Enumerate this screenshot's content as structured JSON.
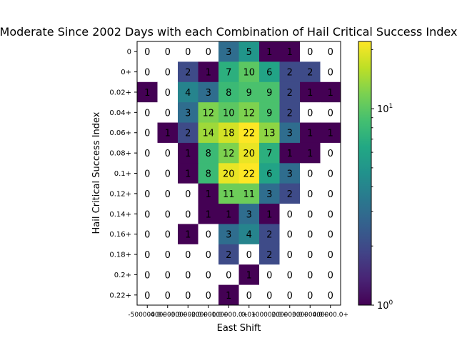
{
  "chart_data": {
    "type": "heatmap",
    "title": "Moderate Since 2002 Days with each Combination of Hail Critical Success Index",
    "xlabel": "East Shift",
    "ylabel": "Hail Critical Success Index",
    "x_ticks": [
      "-500000.0+",
      "-400000.0+",
      "-300000.0+",
      "-200000.0+",
      "-100000.0+",
      "0.0+",
      "100000.0+",
      "200000.0+",
      "300000.0+",
      "400000.0+"
    ],
    "y_ticks": [
      "0",
      "0+",
      "0.02+",
      "0.04+",
      "0.06+",
      "0.08+",
      "0.1+",
      "0.12+",
      "0.14+",
      "0.16+",
      "0.18+",
      "0.2+",
      "0.22+"
    ],
    "values": [
      [
        0,
        0,
        0,
        0,
        3,
        5,
        1,
        1,
        0,
        0
      ],
      [
        0,
        0,
        2,
        1,
        7,
        10,
        6,
        2,
        2,
        0
      ],
      [
        1,
        0,
        4,
        3,
        8,
        9,
        9,
        2,
        1,
        1
      ],
      [
        0,
        0,
        3,
        12,
        10,
        12,
        9,
        2,
        0,
        0
      ],
      [
        0,
        1,
        2,
        14,
        18,
        22,
        13,
        3,
        1,
        1
      ],
      [
        0,
        0,
        1,
        8,
        12,
        20,
        7,
        1,
        1,
        0
      ],
      [
        0,
        0,
        1,
        8,
        20,
        22,
        6,
        3,
        0,
        0
      ],
      [
        0,
        0,
        0,
        1,
        11,
        11,
        3,
        2,
        0,
        0
      ],
      [
        0,
        0,
        0,
        1,
        1,
        3,
        1,
        0,
        0,
        0
      ],
      [
        0,
        0,
        1,
        0,
        3,
        4,
        2,
        0,
        0,
        0
      ],
      [
        0,
        0,
        0,
        0,
        2,
        0,
        2,
        0,
        0,
        0
      ],
      [
        0,
        0,
        0,
        0,
        0,
        1,
        0,
        0,
        0,
        0
      ],
      [
        0,
        0,
        0,
        0,
        1,
        0,
        0,
        0,
        0,
        0
      ]
    ],
    "colorbar": {
      "scale": "log",
      "range": [
        1,
        22
      ],
      "colormap": "viridis",
      "zero_color": "#ffffff",
      "major_ticks": [
        {
          "value": 1,
          "label": "10^0"
        },
        {
          "value": 10,
          "label": "10^1"
        }
      ]
    },
    "grid": false,
    "legend": "none"
  }
}
